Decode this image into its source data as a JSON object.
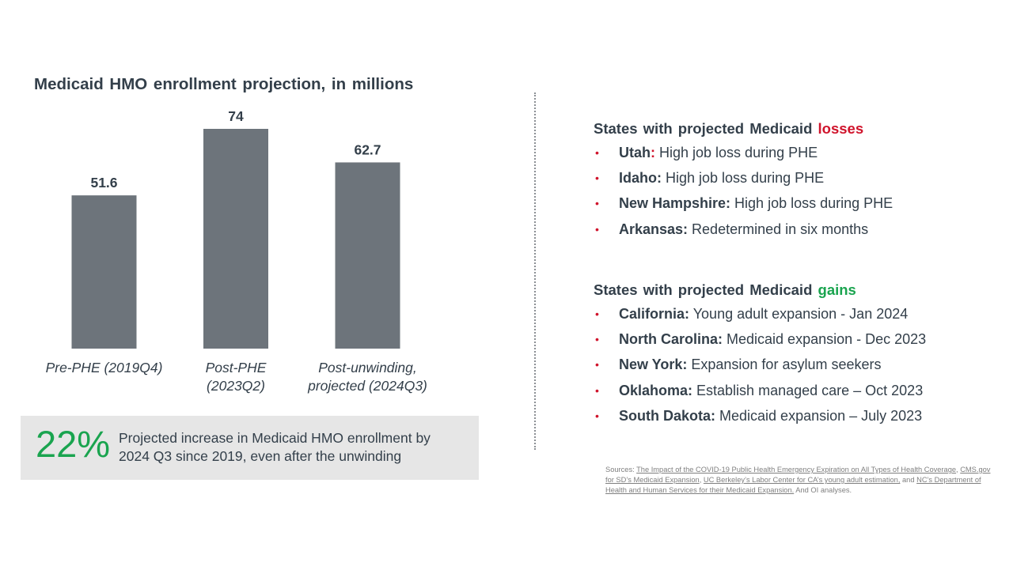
{
  "chart_data": {
    "type": "bar",
    "title": "Medicaid HMO enrollment projection, in millions",
    "categories": [
      "Pre-PHE (2019Q4)",
      "Post-PHE (2023Q2)",
      "Post-unwinding, projected (2024Q3)"
    ],
    "category_lines": [
      [
        "Pre-PHE (2019Q4)"
      ],
      [
        "Post-PHE",
        "(2023Q2)"
      ],
      [
        "Post-unwinding,",
        "projected (2024Q3)"
      ]
    ],
    "values": [
      51.6,
      74,
      62.7
    ],
    "value_labels": [
      "51.6",
      "74",
      "62.7"
    ],
    "xlabel": "",
    "ylabel": "",
    "ylim": [
      0,
      74
    ],
    "grid": false,
    "legend": "none",
    "bar_color": "#6d747b"
  },
  "callout": {
    "percent": "22%",
    "line1": "Projected increase in Medicaid HMO enrollment by",
    "line2": "2024 Q3 since 2019, even after the unwinding"
  },
  "losses": {
    "title_prefix": "States with projected Medicaid",
    "title_emphasis": "losses",
    "items": [
      {
        "state": "Utah",
        "colon": ":",
        "desc": " High job loss during PHE"
      },
      {
        "state": "Idaho:",
        "desc": " High job loss during PHE"
      },
      {
        "state": "New Hampshire:",
        "desc": " High job loss during PHE"
      },
      {
        "state": "Arkansas:",
        "desc": " Redetermined in six months"
      }
    ]
  },
  "gains": {
    "title_prefix": "States with projected Medicaid",
    "title_emphasis": "gains",
    "items": [
      {
        "state": "California:",
        "desc": " Young adult expansion - Jan 2024"
      },
      {
        "state": "North Carolina:",
        "desc": " Medicaid expansion - Dec 2023"
      },
      {
        "state": "New York:",
        "desc": " Expansion for asylum seekers"
      },
      {
        "state": "Oklahoma:",
        "desc": " Establish managed care – Oct 2023"
      },
      {
        "state": "South Dakota:",
        "desc": " Medicaid expansion – July 2023"
      }
    ]
  },
  "sources": {
    "prefix": "Sources: ",
    "link1": "The Impact of the COVID-19 Public Health Emergency Expiration on All Types of Health Coverage",
    "sep1": ", ",
    "link2": "CMS.gov for SD’s Medicaid Expansion",
    "sep2": ", ",
    "link3": "UC Berkeley’s Labor Center for CA’s young adult estimation,",
    "sep3": " and ",
    "link4": "NC’s Department of Health and Human Services for their Medicaid Expansion.",
    "suffix": " And OI analyses."
  },
  "bullet_char": "•"
}
